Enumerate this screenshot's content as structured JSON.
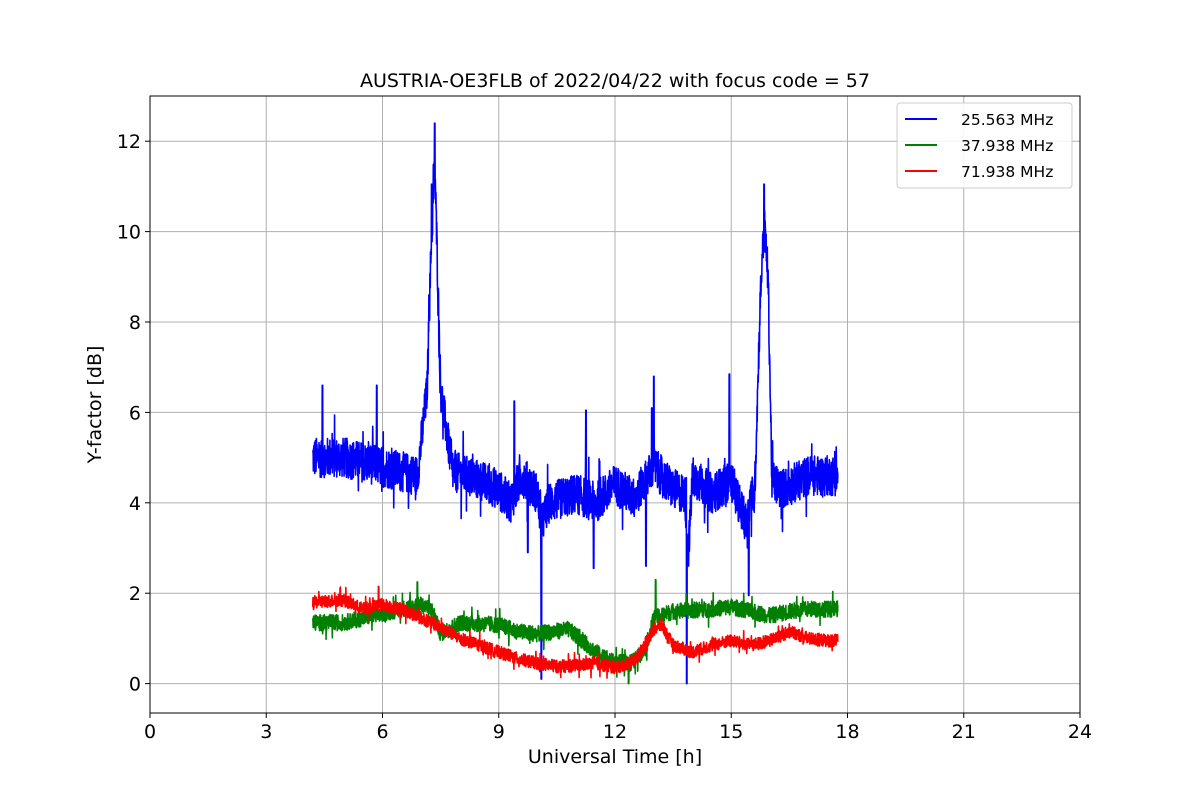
{
  "chart_data": {
    "type": "line",
    "title": "AUSTRIA-OE3FLB of 2022/04/22 with focus code = 57",
    "xlabel": "Universal Time [h]",
    "ylabel": "Y-factor [dB]",
    "xlim": [
      0,
      24
    ],
    "ylim": [
      -0.65,
      13.0
    ],
    "xticks": [
      0,
      3,
      6,
      9,
      12,
      15,
      18,
      21,
      24
    ],
    "yticks": [
      0,
      2,
      4,
      6,
      8,
      10,
      12
    ],
    "grid": true,
    "legend_position": "top-right",
    "x_range_data": [
      4.2,
      17.75
    ],
    "series": [
      {
        "name": "25.563 MHz",
        "color": "#0000ff",
        "noise": 0.45,
        "x": [
          4.2,
          5.0,
          6.0,
          6.9,
          7.15,
          7.25,
          7.35,
          7.5,
          7.8,
          8.5,
          9.0,
          9.3,
          9.6,
          10.0,
          10.1,
          10.3,
          11.0,
          11.5,
          12.0,
          12.5,
          13.0,
          13.5,
          13.8,
          13.9,
          14.0,
          14.5,
          15.0,
          15.4,
          15.5,
          15.6,
          15.75,
          15.85,
          15.95,
          16.05,
          16.3,
          17.0,
          17.75
        ],
        "y": [
          5.0,
          5.0,
          4.8,
          4.6,
          6.5,
          9.5,
          11.5,
          6.5,
          4.7,
          4.5,
          4.3,
          4.0,
          4.6,
          4.2,
          3.5,
          4.0,
          4.2,
          4.0,
          4.4,
          4.1,
          4.8,
          4.3,
          4.2,
          3.0,
          4.6,
          4.2,
          4.5,
          3.5,
          4.2,
          4.1,
          8.5,
          10.2,
          9.0,
          4.5,
          4.3,
          4.6,
          4.6
        ],
        "spikes": [
          {
            "x": 7.35,
            "y": 12.4
          },
          {
            "x": 7.27,
            "y": 11.05
          },
          {
            "x": 7.2,
            "y": 8.6
          },
          {
            "x": 15.85,
            "y": 11.05
          },
          {
            "x": 15.8,
            "y": 9.5
          },
          {
            "x": 13.85,
            "y": 0.0
          },
          {
            "x": 10.1,
            "y": 0.1
          },
          {
            "x": 15.45,
            "y": 1.95
          },
          {
            "x": 14.95,
            "y": 6.85
          },
          {
            "x": 13.0,
            "y": 6.8
          },
          {
            "x": 12.95,
            "y": 6.1
          },
          {
            "x": 5.85,
            "y": 6.6
          },
          {
            "x": 4.45,
            "y": 6.6
          },
          {
            "x": 9.4,
            "y": 6.25
          },
          {
            "x": 11.25,
            "y": 6.05
          },
          {
            "x": 9.75,
            "y": 2.9
          },
          {
            "x": 11.45,
            "y": 2.55
          },
          {
            "x": 12.8,
            "y": 2.6
          }
        ]
      },
      {
        "name": "37.938 MHz",
        "color": "#008000",
        "noise": 0.18,
        "x": [
          4.2,
          5.0,
          6.0,
          7.0,
          7.3,
          7.5,
          8.0,
          9.0,
          9.5,
          10.0,
          10.8,
          11.5,
          12.0,
          12.5,
          12.8,
          13.0,
          13.5,
          14.5,
          15.0,
          15.5,
          16.0,
          16.5,
          17.0,
          17.75
        ],
        "y": [
          1.35,
          1.35,
          1.55,
          1.75,
          1.6,
          1.1,
          1.35,
          1.3,
          1.15,
          1.1,
          1.2,
          0.7,
          0.45,
          0.5,
          0.8,
          1.45,
          1.6,
          1.65,
          1.7,
          1.6,
          1.5,
          1.6,
          1.65,
          1.65
        ],
        "spikes": [
          {
            "x": 13.05,
            "y": 2.3
          },
          {
            "x": 6.9,
            "y": 2.25
          },
          {
            "x": 12.35,
            "y": 0.0
          }
        ]
      },
      {
        "name": "71.938 MHz",
        "color": "#ff0000",
        "noise": 0.14,
        "x": [
          4.2,
          5.0,
          5.5,
          6.0,
          6.5,
          7.0,
          7.5,
          8.0,
          8.5,
          9.0,
          9.5,
          10.0,
          10.5,
          11.0,
          11.5,
          12.0,
          12.5,
          12.8,
          13.0,
          13.2,
          13.5,
          14.0,
          14.5,
          15.0,
          15.5,
          16.0,
          16.5,
          17.0,
          17.5,
          17.75
        ],
        "y": [
          1.8,
          1.85,
          1.65,
          1.75,
          1.65,
          1.45,
          1.25,
          1.0,
          0.85,
          0.7,
          0.55,
          0.45,
          0.38,
          0.4,
          0.45,
          0.35,
          0.5,
          0.9,
          1.2,
          1.3,
          0.85,
          0.7,
          0.85,
          0.95,
          0.85,
          0.95,
          1.15,
          1.0,
          0.95,
          0.95
        ],
        "spikes": [
          {
            "x": 13.2,
            "y": 1.45
          },
          {
            "x": 5.9,
            "y": 2.15
          }
        ]
      }
    ]
  }
}
